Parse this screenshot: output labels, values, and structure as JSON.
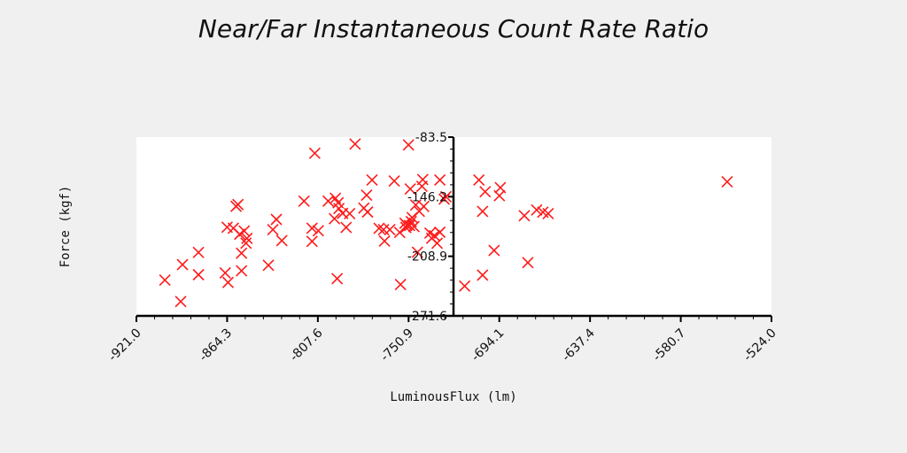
{
  "chart_data": {
    "type": "scatter",
    "title": "Near/Far Instantaneous Count Rate Ratio",
    "xlabel": "LuminousFlux (lm)",
    "ylabel": "Force (kgf)",
    "xlim": [
      -921.0,
      -524.0
    ],
    "ylim": [
      -271.6,
      -83.5
    ],
    "xticks": [
      "-921.0",
      "-864.3",
      "-807.6",
      "-750.9",
      "-694.1",
      "-637.4",
      "-580.7",
      "-524.0"
    ],
    "yticks": [
      "-83.5",
      "-146.2",
      "-208.9",
      "-271.6"
    ],
    "grid": false,
    "marker": "x",
    "color": "#ff1a1a",
    "points": [
      {
        "x": -903.2,
        "y": -234.0
      },
      {
        "x": -893.3,
        "y": -256.5
      },
      {
        "x": -892.2,
        "y": -217.7
      },
      {
        "x": -882.2,
        "y": -228.3
      },
      {
        "x": -882.2,
        "y": -204.9
      },
      {
        "x": -865.5,
        "y": -226.4
      },
      {
        "x": -864.3,
        "y": -178.3
      },
      {
        "x": -863.7,
        "y": -236.4
      },
      {
        "x": -860.4,
        "y": -179.4
      },
      {
        "x": -858.7,
        "y": -156.3
      },
      {
        "x": -857.5,
        "y": -154.4
      },
      {
        "x": -856.4,
        "y": -185.7
      },
      {
        "x": -855.3,
        "y": -205.7
      },
      {
        "x": -855.3,
        "y": -224.2
      },
      {
        "x": -853.6,
        "y": -182.3
      },
      {
        "x": -852.5,
        "y": -195.1
      },
      {
        "x": -851.9,
        "y": -190.1
      },
      {
        "x": -838.5,
        "y": -218.4
      },
      {
        "x": -835.7,
        "y": -180.9
      },
      {
        "x": -833.5,
        "y": -170.1
      },
      {
        "x": -830.1,
        "y": -192.4
      },
      {
        "x": -816.2,
        "y": -150.8
      },
      {
        "x": -811.2,
        "y": -193.2
      },
      {
        "x": -811.2,
        "y": -179.4
      },
      {
        "x": -809.5,
        "y": -100.4
      },
      {
        "x": -807.3,
        "y": -182.0
      },
      {
        "x": -801.1,
        "y": -150.8
      },
      {
        "x": -797.2,
        "y": -169.3
      },
      {
        "x": -796.6,
        "y": -147.8
      },
      {
        "x": -795.5,
        "y": -232.4
      },
      {
        "x": -794.9,
        "y": -152.6
      },
      {
        "x": -794.4,
        "y": -158.6
      },
      {
        "x": -792.1,
        "y": -163.7
      },
      {
        "x": -789.9,
        "y": -178.5
      },
      {
        "x": -787.7,
        "y": -164.0
      },
      {
        "x": -784.3,
        "y": -90.8
      },
      {
        "x": -778.8,
        "y": -158.2
      },
      {
        "x": -777.1,
        "y": -144.6
      },
      {
        "x": -776.5,
        "y": -162.3
      },
      {
        "x": -773.7,
        "y": -128.6
      },
      {
        "x": -769.3,
        "y": -179.5
      },
      {
        "x": -766.5,
        "y": -180.9
      },
      {
        "x": -765.9,
        "y": -192.9
      },
      {
        "x": -762.6,
        "y": -180.9
      },
      {
        "x": -759.8,
        "y": -129.7
      },
      {
        "x": -756.4,
        "y": -183.8
      },
      {
        "x": -755.9,
        "y": -238.6
      },
      {
        "x": -753.1,
        "y": -174.1
      },
      {
        "x": -752.5,
        "y": -178.6
      },
      {
        "x": -752.0,
        "y": -176.3
      },
      {
        "x": -750.9,
        "y": -91.7
      },
      {
        "x": -750.3,
        "y": -176.5
      },
      {
        "x": -749.8,
        "y": -138.0
      },
      {
        "x": -749.2,
        "y": -172.4
      },
      {
        "x": -748.6,
        "y": -168.2
      },
      {
        "x": -747.5,
        "y": -177.6
      },
      {
        "x": -746.4,
        "y": -154.9
      },
      {
        "x": -745.3,
        "y": -204.6
      },
      {
        "x": -744.2,
        "y": -161.6
      },
      {
        "x": -742.5,
        "y": -135.2
      },
      {
        "x": -742.0,
        "y": -128.1
      },
      {
        "x": -741.4,
        "y": -156.4
      },
      {
        "x": -737.5,
        "y": -184.5
      },
      {
        "x": -736.4,
        "y": -190.0
      },
      {
        "x": -734.7,
        "y": -187.2
      },
      {
        "x": -733.0,
        "y": -195.2
      },
      {
        "x": -731.3,
        "y": -128.6
      },
      {
        "x": -731.3,
        "y": -183.6
      },
      {
        "x": -728.6,
        "y": -148.7
      },
      {
        "x": -727.5,
        "y": -146.2
      },
      {
        "x": -715.8,
        "y": -240.2
      },
      {
        "x": -706.9,
        "y": -128.6
      },
      {
        "x": -704.6,
        "y": -228.7
      },
      {
        "x": -704.6,
        "y": -161.7
      },
      {
        "x": -703.0,
        "y": -140.9
      },
      {
        "x": -697.4,
        "y": -202.7
      },
      {
        "x": -694.1,
        "y": -145.1
      },
      {
        "x": -693.5,
        "y": -136.6
      },
      {
        "x": -678.5,
        "y": -166.2
      },
      {
        "x": -676.3,
        "y": -215.5
      },
      {
        "x": -670.8,
        "y": -160.2
      },
      {
        "x": -666.9,
        "y": -162.5
      },
      {
        "x": -663.6,
        "y": -164.0
      },
      {
        "x": -551.7,
        "y": -130.5
      }
    ]
  }
}
